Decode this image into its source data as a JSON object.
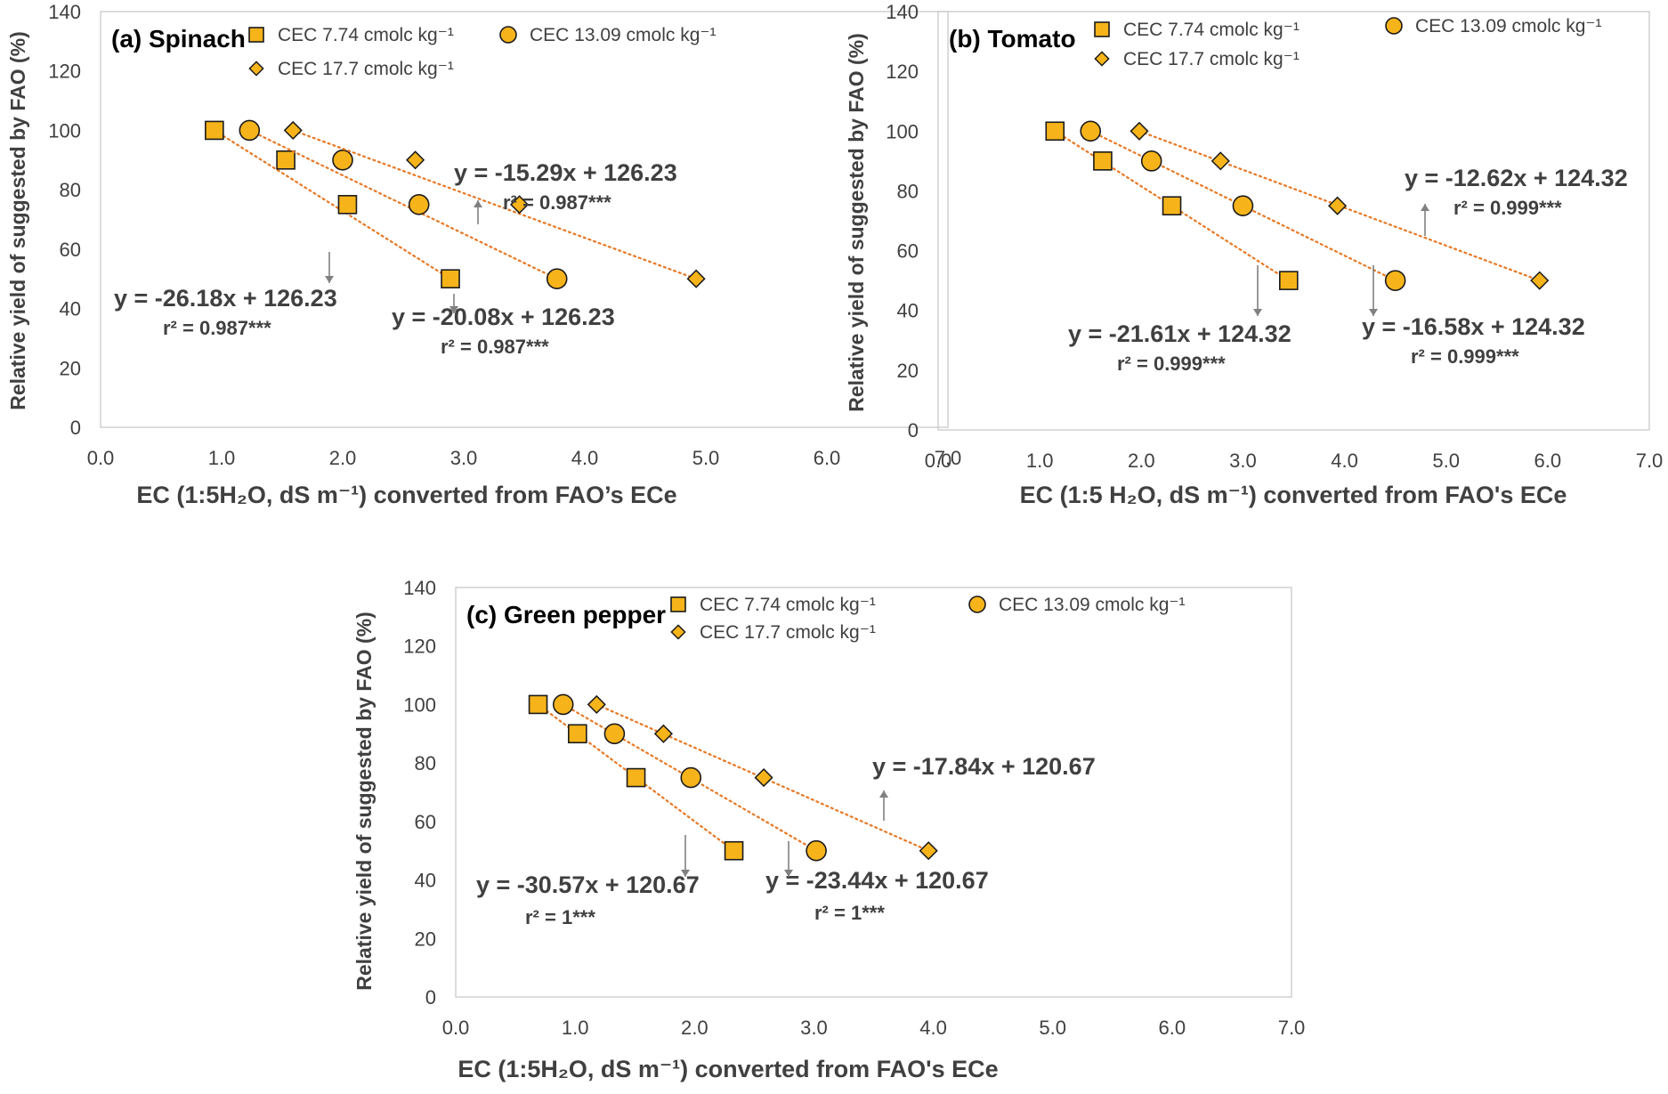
{
  "colors": {
    "marker_fill": "#F6B41A",
    "marker_stroke": "#1A1A1A",
    "trendline": "#E87722",
    "axis": "#D0D0D0",
    "text": "#404040",
    "arrow": "#808080"
  },
  "chart_data": [
    {
      "type": "scatter",
      "panel_label": "(a) Spinach",
      "ylabel": "Relative yield of suggested by FAO (%)",
      "xlabel": "EC (1:5H₂O, dS m⁻¹) converted from FAO’s ECe",
      "xlim": [
        0,
        7
      ],
      "ylim": [
        0,
        140
      ],
      "xticks": [
        "0.0",
        "1.0",
        "2.0",
        "3.0",
        "4.0",
        "5.0",
        "6.0",
        "7.0"
      ],
      "yticks": [
        "0",
        "20",
        "40",
        "60",
        "80",
        "100",
        "120",
        "140"
      ],
      "grid": false,
      "legend_position": "top",
      "series": [
        {
          "name": "CEC 7.74 cmolᴄ kg⁻¹",
          "marker": "square",
          "x": [
            0.94,
            1.53,
            2.04,
            2.89
          ],
          "y": [
            100,
            90,
            75,
            50
          ],
          "equation": "y = -26.18x + 126.23",
          "r2": "r² = 0.987***"
        },
        {
          "name": "CEC 13.09 cmolᴄ kg⁻¹",
          "marker": "circle",
          "x": [
            1.23,
            2.0,
            2.63,
            3.77
          ],
          "y": [
            100,
            90,
            75,
            50
          ],
          "equation": "y = -20.08x + 126.23",
          "r2": "r² = 0.987***"
        },
        {
          "name": "CEC 17.7 cmolᴄ kg⁻¹",
          "marker": "diamond",
          "x": [
            1.59,
            2.6,
            3.46,
            4.92
          ],
          "y": [
            100,
            90,
            75,
            50
          ],
          "equation": "y = -15.29x + 126.23",
          "r2": "r² = 0.987***"
        }
      ]
    },
    {
      "type": "scatter",
      "panel_label": "(b) Tomato",
      "ylabel": "Relative yield of suggested by FAO (%)",
      "xlabel": "EC (1:5 H₂O, dS m⁻¹) converted from FAO's ECe",
      "xlim": [
        0,
        7
      ],
      "ylim": [
        0,
        140
      ],
      "xticks": [
        "0.0",
        "1.0",
        "2.0",
        "3.0",
        "4.0",
        "5.0",
        "6.0",
        "7.0"
      ],
      "yticks": [
        "0",
        "20",
        "40",
        "60",
        "80",
        "100",
        "120",
        "140"
      ],
      "grid": false,
      "legend_position": "top",
      "series": [
        {
          "name": "CEC 7.74 cmolᴄ kg⁻¹",
          "marker": "square",
          "x": [
            1.15,
            1.62,
            2.3,
            3.45
          ],
          "y": [
            100,
            90,
            75,
            50
          ],
          "equation": "y = -21.61x + 124.32",
          "r2": "r² = 0.999***"
        },
        {
          "name": "CEC 13.09 cmolᴄ kg⁻¹",
          "marker": "circle",
          "x": [
            1.5,
            2.1,
            3.0,
            4.5
          ],
          "y": [
            100,
            90,
            75,
            50
          ],
          "equation": "y = -16.58x + 124.32",
          "r2": "r² = 0.999***"
        },
        {
          "name": "CEC 17.7 cmolᴄ kg⁻¹",
          "marker": "diamond",
          "x": [
            1.98,
            2.78,
            3.93,
            5.92
          ],
          "y": [
            100,
            90,
            75,
            50
          ],
          "equation": "y = -12.62x + 124.32",
          "r2": "r² = 0.999***"
        }
      ]
    },
    {
      "type": "scatter",
      "panel_label": "(c) Green pepper",
      "ylabel": "Relative yield of suggested by FAO (%)",
      "xlabel": "EC (1:5H₂O, dS m⁻¹) converted from FAO's ECe",
      "xlim": [
        0,
        7
      ],
      "ylim": [
        0,
        140
      ],
      "xticks": [
        "0.0",
        "1.0",
        "2.0",
        "3.0",
        "4.0",
        "5.0",
        "6.0",
        "7.0"
      ],
      "yticks": [
        "0",
        "20",
        "40",
        "60",
        "80",
        "100",
        "120",
        "140"
      ],
      "grid": false,
      "legend_position": "top",
      "series": [
        {
          "name": "CEC 7.74 cmolᴄ kg⁻¹",
          "marker": "square",
          "x": [
            0.69,
            1.02,
            1.51,
            2.33
          ],
          "y": [
            100,
            90,
            75,
            50
          ],
          "equation": "y = -30.57x + 120.67",
          "r2": "r² = 1***"
        },
        {
          "name": "CEC 13.09 cmolᴄ kg⁻¹",
          "marker": "circle",
          "x": [
            0.9,
            1.33,
            1.97,
            3.02
          ],
          "y": [
            100,
            90,
            75,
            50
          ],
          "equation": "y = -23.44x + 120.67",
          "r2": "r² = 1***"
        },
        {
          "name": "CEC 17.7 cmolᴄ kg⁻¹",
          "marker": "diamond",
          "x": [
            1.18,
            1.74,
            2.58,
            3.96
          ],
          "y": [
            100,
            90,
            75,
            50
          ],
          "equation": "y = -17.84x + 120.67",
          "r2": ""
        }
      ]
    }
  ]
}
